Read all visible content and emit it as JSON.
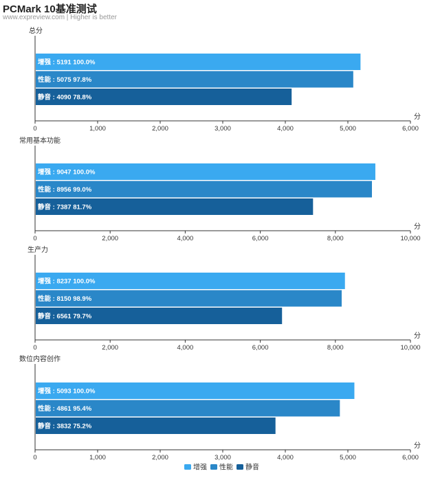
{
  "header": {
    "title": "PCMark 10基准测试",
    "subtitle": "www.expreview.com | Higher is better"
  },
  "colors": {
    "增强": "#3aa9f0",
    "性能": "#2a87c8",
    "静音": "#16609a"
  },
  "chart_data": [
    {
      "type": "bar",
      "orientation": "horizontal",
      "title": "总分",
      "unit": "分",
      "xlim": [
        0,
        6000
      ],
      "ticks": [
        "0",
        "1,000",
        "2,000",
        "3,000",
        "4,000",
        "5,000",
        "6,000"
      ],
      "tick_values": [
        0,
        1000,
        2000,
        3000,
        4000,
        5000,
        6000
      ],
      "bars": [
        {
          "name": "增强",
          "value": 5191,
          "percent": "100.0%",
          "label": "增强 : 5191  100.0%"
        },
        {
          "name": "性能",
          "value": 5075,
          "percent": "97.8%",
          "label": "性能 : 5075  97.8%"
        },
        {
          "name": "静音",
          "value": 4090,
          "percent": "78.8%",
          "label": "静音 : 4090  78.8%"
        }
      ]
    },
    {
      "type": "bar",
      "orientation": "horizontal",
      "title": "常用基本功能",
      "unit": "分",
      "xlim": [
        0,
        10000
      ],
      "ticks": [
        "0",
        "2,000",
        "4,000",
        "6,000",
        "8,000",
        "10,000"
      ],
      "tick_values": [
        0,
        2000,
        4000,
        6000,
        8000,
        10000
      ],
      "bars": [
        {
          "name": "增强",
          "value": 9047,
          "percent": "100.0%",
          "label": "增强 : 9047  100.0%"
        },
        {
          "name": "性能",
          "value": 8956,
          "percent": "99.0%",
          "label": "性能 : 8956  99.0%"
        },
        {
          "name": "静音",
          "value": 7387,
          "percent": "81.7%",
          "label": "静音 : 7387  81.7%"
        }
      ]
    },
    {
      "type": "bar",
      "orientation": "horizontal",
      "title": "生产力",
      "unit": "分",
      "xlim": [
        0,
        10000
      ],
      "ticks": [
        "0",
        "2,000",
        "4,000",
        "6,000",
        "8,000",
        "10,000"
      ],
      "tick_values": [
        0,
        2000,
        4000,
        6000,
        8000,
        10000
      ],
      "bars": [
        {
          "name": "增强",
          "value": 8237,
          "percent": "100.0%",
          "label": "增强 : 8237  100.0%"
        },
        {
          "name": "性能",
          "value": 8150,
          "percent": "98.9%",
          "label": "性能 : 8150  98.9%"
        },
        {
          "name": "静音",
          "value": 6561,
          "percent": "79.7%",
          "label": "静音 : 6561  79.7%"
        }
      ]
    },
    {
      "type": "bar",
      "orientation": "horizontal",
      "title": "数位内容创作",
      "unit": "分",
      "xlim": [
        0,
        6000
      ],
      "ticks": [
        "0",
        "1,000",
        "2,000",
        "3,000",
        "4,000",
        "5,000",
        "6,000"
      ],
      "tick_values": [
        0,
        1000,
        2000,
        3000,
        4000,
        5000,
        6000
      ],
      "bars": [
        {
          "name": "增强",
          "value": 5093,
          "percent": "100.0%",
          "label": "增强 : 5093  100.0%"
        },
        {
          "name": "性能",
          "value": 4861,
          "percent": "95.4%",
          "label": "性能 : 4861  95.4%"
        },
        {
          "name": "静音",
          "value": 3832,
          "percent": "75.2%",
          "label": "静音 : 3832  75.2%"
        }
      ]
    }
  ],
  "legend": {
    "position": "bottom-center",
    "items": [
      "增强",
      "性能",
      "静音"
    ]
  }
}
